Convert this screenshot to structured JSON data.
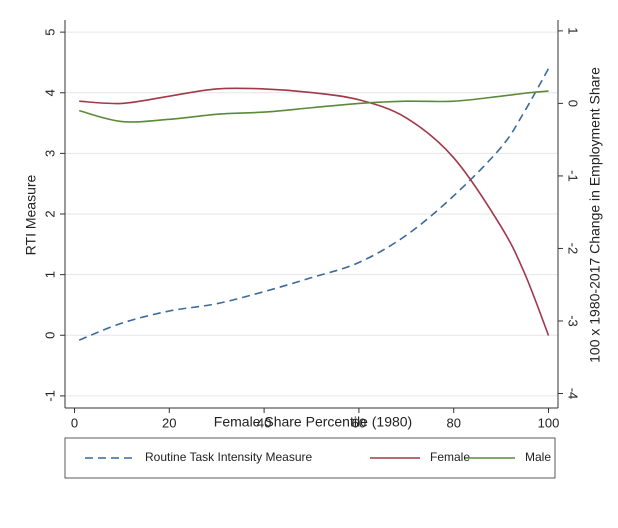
{
  "chart_data": {
    "type": "line",
    "xlabel": "Female Share Percentile (1980)",
    "ylabel": "RTI Measure",
    "y2label": "100 x 1980-2017 Change in Employment Share",
    "x": [
      1,
      10,
      20,
      30,
      40,
      50,
      60,
      70,
      80,
      90,
      95,
      100
    ],
    "series": [
      {
        "name": "Routine Task Intensity Measure",
        "color": "#3a6a9c",
        "dash": true,
        "values": [
          -0.08,
          0.2,
          0.4,
          0.52,
          0.72,
          0.95,
          1.2,
          1.65,
          2.3,
          3.1,
          3.7,
          4.4
        ]
      },
      {
        "name": "Female",
        "color": "#a0394a",
        "axis": "y2",
        "values": [
          0.03,
          0.0,
          0.1,
          0.2,
          0.2,
          0.15,
          0.05,
          -0.2,
          -0.75,
          -1.7,
          -2.35,
          -3.2
        ]
      },
      {
        "name": "Male",
        "color": "#5b8a3a",
        "axis": "y2",
        "values": [
          -0.1,
          -0.25,
          -0.22,
          -0.15,
          -0.12,
          -0.06,
          0,
          0.03,
          0.03,
          0.1,
          0.14,
          0.17
        ]
      }
    ],
    "xlim": [
      -2,
      102
    ],
    "xticks": [
      0,
      20,
      40,
      60,
      80,
      100
    ],
    "ylim": [
      -1.2,
      5.2
    ],
    "yticks": [
      -1,
      0,
      1,
      2,
      3,
      4,
      5
    ],
    "y2lim": [
      -4.2,
      1.15
    ],
    "y2ticks": [
      -4,
      -3,
      -2,
      -1,
      0,
      1
    ],
    "grid": true,
    "legend": "bottom"
  }
}
